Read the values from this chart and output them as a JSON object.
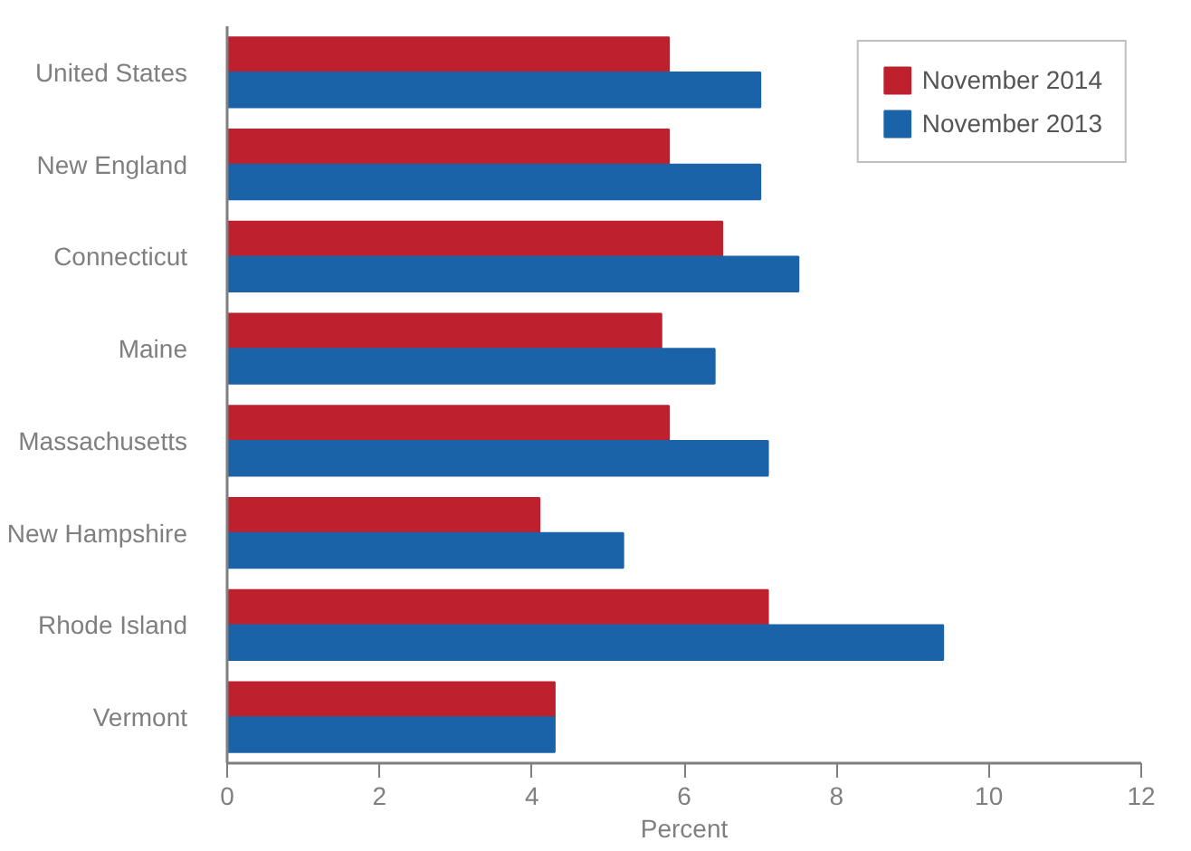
{
  "chart_data": {
    "type": "bar",
    "orientation": "horizontal",
    "xlabel": "Percent",
    "categories": [
      "United States",
      "New England",
      "Connecticut",
      "Maine",
      "Massachusetts",
      "New Hampshire",
      "Rhode Island",
      "Vermont"
    ],
    "series": [
      {
        "name": "November 2014",
        "color": "#be202e",
        "values": [
          5.8,
          5.8,
          6.5,
          5.7,
          5.8,
          4.1,
          7.1,
          4.3
        ]
      },
      {
        "name": "November 2013",
        "color": "#1b63a9",
        "values": [
          7.0,
          7.0,
          7.5,
          6.4,
          7.1,
          5.2,
          9.4,
          4.3
        ]
      }
    ],
    "xlim": [
      0,
      12
    ],
    "xticks": [
      0,
      2,
      4,
      6,
      8,
      10,
      12
    ],
    "grid": false,
    "legend": "top right"
  }
}
